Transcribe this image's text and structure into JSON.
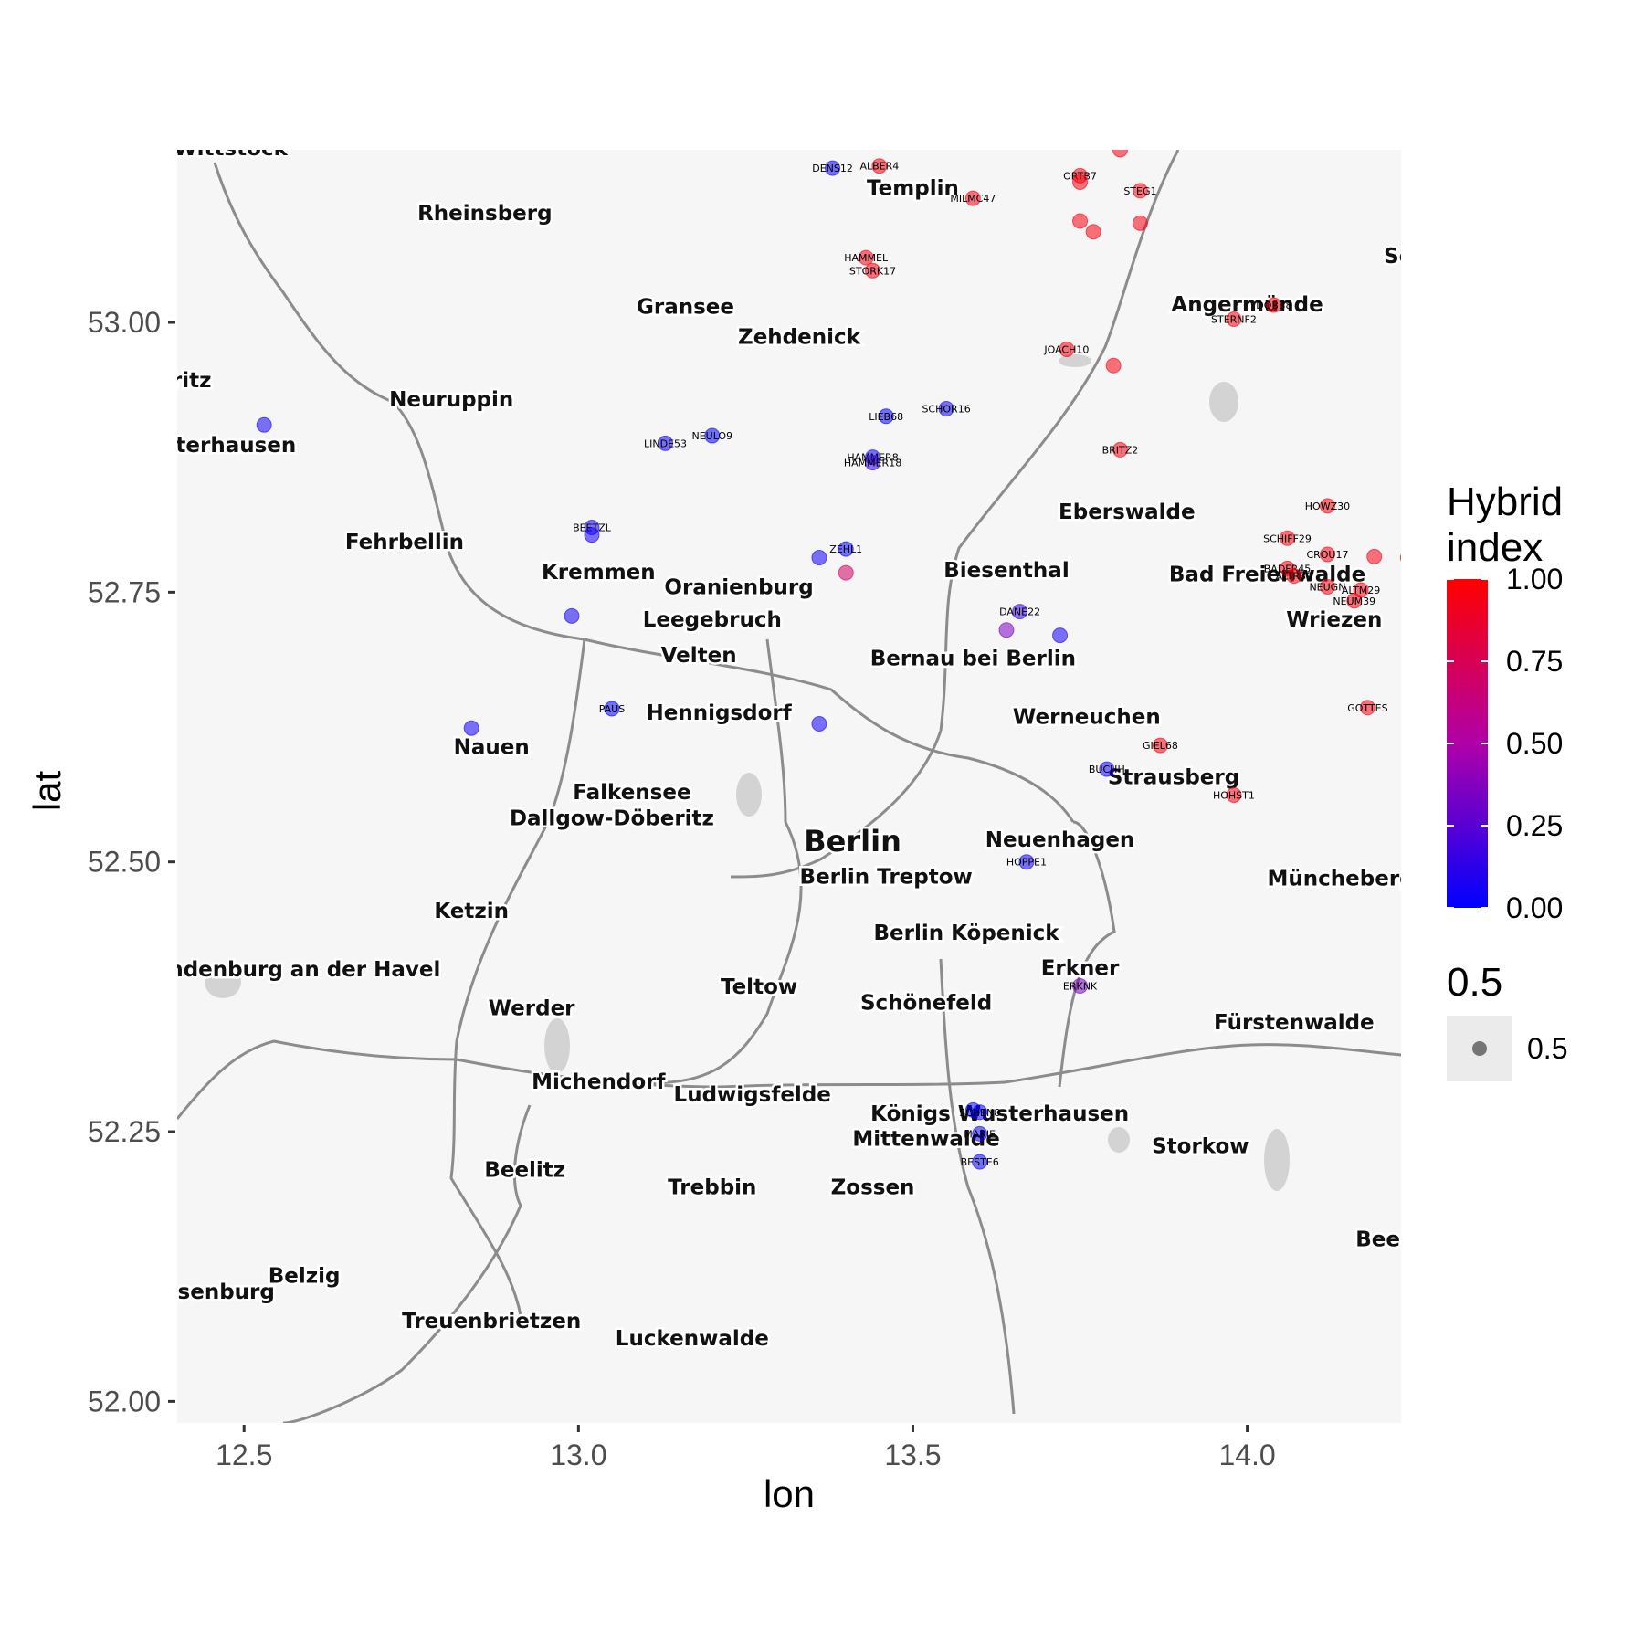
{
  "chart_data": {
    "type": "scatter",
    "basemap": "grayscale road map",
    "xlabel": "lon",
    "ylabel": "lat",
    "xlim": [
      12.4,
      14.23
    ],
    "ylim": [
      51.98,
      53.16
    ],
    "x_ticks": [
      12.5,
      13.0,
      13.5,
      14.0
    ],
    "x_tick_labels": [
      "12.5",
      "13.0",
      "13.5",
      "14.0"
    ],
    "y_ticks": [
      52.0,
      52.25,
      52.5,
      52.75,
      53.0
    ],
    "y_tick_labels": [
      "52.00",
      "52.25",
      "52.50",
      "52.75",
      "53.00"
    ],
    "grid": false,
    "color_scale": {
      "title": [
        "Hybrid",
        "index"
      ],
      "low_color": "#0000FF",
      "high_color": "#FF0000",
      "mid_color": "#B000A8",
      "ticks": [
        0.0,
        0.25,
        0.5,
        0.75,
        1.0
      ],
      "tick_labels": [
        "0.00",
        "0.25",
        "0.50",
        "0.75",
        "1.00"
      ]
    },
    "size_legend": {
      "title": "0.5",
      "label": "0.5"
    },
    "place_names": [
      {
        "name": "Wittstock",
        "lon": 12.48,
        "lat": 53.155
      },
      {
        "name": "Rheinsberg",
        "lon": 12.86,
        "lat": 53.095
      },
      {
        "name": "Templin",
        "lon": 13.5,
        "lat": 53.118
      },
      {
        "name": "Gransee",
        "lon": 13.16,
        "lat": 53.008
      },
      {
        "name": "Zehdenick",
        "lon": 13.33,
        "lat": 52.98
      },
      {
        "name": "Angermünde",
        "lon": 14.0,
        "lat": 53.01
      },
      {
        "name": "Neuruppin",
        "lon": 12.81,
        "lat": 52.922
      },
      {
        "name": "Eberswalde",
        "lon": 13.82,
        "lat": 52.818
      },
      {
        "name": "Fehrbellin",
        "lon": 12.74,
        "lat": 52.79
      },
      {
        "name": "Bad Freienwalde",
        "lon": 14.03,
        "lat": 52.76
      },
      {
        "name": "Kremmen",
        "lon": 13.03,
        "lat": 52.762
      },
      {
        "name": "Oranienburg",
        "lon": 13.24,
        "lat": 52.748
      },
      {
        "name": "Biesenthal",
        "lon": 13.64,
        "lat": 52.764
      },
      {
        "name": "Leegebruch",
        "lon": 13.2,
        "lat": 52.718
      },
      {
        "name": "Wriezen",
        "lon": 14.13,
        "lat": 52.718
      },
      {
        "name": "Velten",
        "lon": 13.18,
        "lat": 52.685
      },
      {
        "name": "Bernau bei Berlin",
        "lon": 13.59,
        "lat": 52.682
      },
      {
        "name": "Hennigsdorf",
        "lon": 13.21,
        "lat": 52.632
      },
      {
        "name": "Werneuchen",
        "lon": 13.76,
        "lat": 52.628
      },
      {
        "name": "Nauen",
        "lon": 12.87,
        "lat": 52.6
      },
      {
        "name": "Strausberg",
        "lon": 13.89,
        "lat": 52.572
      },
      {
        "name": "Falkensee",
        "lon": 13.08,
        "lat": 52.558
      },
      {
        "name": "Dallgow-Döberitz",
        "lon": 13.05,
        "lat": 52.534
      },
      {
        "name": "Berlin",
        "lon": 13.41,
        "lat": 52.51,
        "major": true
      },
      {
        "name": "Neuenhagen",
        "lon": 13.72,
        "lat": 52.514
      },
      {
        "name": "Berlin Treptow",
        "lon": 13.46,
        "lat": 52.48
      },
      {
        "name": "Müncheberg",
        "lon": 14.14,
        "lat": 52.478
      },
      {
        "name": "Ketzin",
        "lon": 12.84,
        "lat": 52.448
      },
      {
        "name": "Berlin Köpenick",
        "lon": 13.58,
        "lat": 52.428
      },
      {
        "name": "Brandenburg an der Havel",
        "lon": 12.56,
        "lat": 52.394
      },
      {
        "name": "Erkner",
        "lon": 13.75,
        "lat": 52.395
      },
      {
        "name": "Teltow",
        "lon": 13.27,
        "lat": 52.378
      },
      {
        "name": "Werder",
        "lon": 12.93,
        "lat": 52.358
      },
      {
        "name": "Schönefeld",
        "lon": 13.52,
        "lat": 52.363
      },
      {
        "name": "Fürstenwalde",
        "lon": 14.07,
        "lat": 52.345
      },
      {
        "name": "Michendorf",
        "lon": 13.03,
        "lat": 52.29
      },
      {
        "name": "Ludwigsfelde",
        "lon": 13.26,
        "lat": 52.278
      },
      {
        "name": "Königs Wusterhausen",
        "lon": 13.63,
        "lat": 52.26
      },
      {
        "name": "Mittenwalde",
        "lon": 13.52,
        "lat": 52.237
      },
      {
        "name": "Storkow",
        "lon": 13.93,
        "lat": 52.23
      },
      {
        "name": "Beelitz",
        "lon": 12.92,
        "lat": 52.208
      },
      {
        "name": "Trebbin",
        "lon": 13.2,
        "lat": 52.192
      },
      {
        "name": "Zossen",
        "lon": 13.44,
        "lat": 52.192
      },
      {
        "name": "Beeskow",
        "lon": 14.24,
        "lat": 52.144
      },
      {
        "name": "Belzig",
        "lon": 12.59,
        "lat": 52.11
      },
      {
        "name": "Wiesenburg",
        "lon": 12.44,
        "lat": 52.095
      },
      {
        "name": "Treuenbrietzen",
        "lon": 12.87,
        "lat": 52.068
      },
      {
        "name": "Luckenwalde",
        "lon": 13.17,
        "lat": 52.052
      },
      {
        "name": "Schwedt",
        "lon": 14.28,
        "lat": 53.055
      },
      {
        "name": "Wusterhausen",
        "lon": 12.45,
        "lat": 52.88
      },
      {
        "name": "Kyritz",
        "lon": 12.4,
        "lat": 52.94
      }
    ],
    "points": [
      {
        "label": "",
        "lon": 13.81,
        "lat": 53.16,
        "hybrid": 0.95
      },
      {
        "label": "DENS12",
        "lon": 13.38,
        "lat": 53.143,
        "hybrid": 0.02
      },
      {
        "label": "ALBER4",
        "lon": 13.45,
        "lat": 53.145,
        "hybrid": 0.95
      },
      {
        "label": "ORTB7",
        "lon": 13.75,
        "lat": 53.136,
        "hybrid": 0.95
      },
      {
        "label": "",
        "lon": 13.75,
        "lat": 53.13,
        "hybrid": 0.95
      },
      {
        "label": "STEG1",
        "lon": 13.84,
        "lat": 53.122,
        "hybrid": 0.95
      },
      {
        "label": "MILMC47",
        "lon": 13.59,
        "lat": 53.115,
        "hybrid": 0.95
      },
      {
        "label": "",
        "lon": 13.75,
        "lat": 53.094,
        "hybrid": 0.95
      },
      {
        "label": "",
        "lon": 13.77,
        "lat": 53.084,
        "hybrid": 0.95
      },
      {
        "label": "",
        "lon": 13.84,
        "lat": 53.092,
        "hybrid": 0.95
      },
      {
        "label": "HAMMEL",
        "lon": 13.43,
        "lat": 53.06,
        "hybrid": 0.95
      },
      {
        "label": "STORK17",
        "lon": 13.44,
        "lat": 53.048,
        "hybrid": 0.95
      },
      {
        "label": "DOBB8",
        "lon": 14.04,
        "lat": 53.016,
        "hybrid": 0.95
      },
      {
        "label": "STERNF2",
        "lon": 13.98,
        "lat": 53.003,
        "hybrid": 0.95
      },
      {
        "label": "JOACH10",
        "lon": 13.73,
        "lat": 52.975,
        "hybrid": 0.95
      },
      {
        "label": "",
        "lon": 13.8,
        "lat": 52.96,
        "hybrid": 0.95
      },
      {
        "label": "",
        "lon": 12.53,
        "lat": 52.905,
        "hybrid": 0.05
      },
      {
        "label": "SCHOR16",
        "lon": 13.55,
        "lat": 52.92,
        "hybrid": 0.05
      },
      {
        "label": "LIEB68",
        "lon": 13.46,
        "lat": 52.913,
        "hybrid": 0.0
      },
      {
        "label": "NEULO9",
        "lon": 13.2,
        "lat": 52.895,
        "hybrid": 0.0
      },
      {
        "label": "LINDE53",
        "lon": 13.13,
        "lat": 52.888,
        "hybrid": 0.05
      },
      {
        "label": "BRITZ2",
        "lon": 13.81,
        "lat": 52.882,
        "hybrid": 0.95
      },
      {
        "label": "HAMMER8",
        "lon": 13.44,
        "lat": 52.875,
        "hybrid": 0.02
      },
      {
        "label": "HAMMER18",
        "lon": 13.44,
        "lat": 52.87,
        "hybrid": 0.15
      },
      {
        "label": "HOWZ30",
        "lon": 14.12,
        "lat": 52.83,
        "hybrid": 0.95
      },
      {
        "label": "BEETZL",
        "lon": 13.02,
        "lat": 52.81,
        "hybrid": 0.05
      },
      {
        "label": "",
        "lon": 13.02,
        "lat": 52.803,
        "hybrid": 0.05
      },
      {
        "label": "SCHIFF29",
        "lon": 14.06,
        "lat": 52.8,
        "hybrid": 0.95
      },
      {
        "label": "ZEHL1",
        "lon": 13.4,
        "lat": 52.79,
        "hybrid": 0.0
      },
      {
        "label": "",
        "lon": 13.36,
        "lat": 52.782,
        "hybrid": 0.05
      },
      {
        "label": "CROU17",
        "lon": 14.12,
        "lat": 52.785,
        "hybrid": 0.95
      },
      {
        "label": "",
        "lon": 14.19,
        "lat": 52.783,
        "hybrid": 0.95
      },
      {
        "label": "",
        "lon": 14.24,
        "lat": 52.782,
        "hybrid": 0.95
      },
      {
        "label": "",
        "lon": 13.4,
        "lat": 52.768,
        "hybrid": 0.7
      },
      {
        "label": "BADFR45",
        "lon": 14.06,
        "lat": 52.772,
        "hybrid": 0.95
      },
      {
        "label": "ALTR39",
        "lon": 14.07,
        "lat": 52.765,
        "hybrid": 0.95
      },
      {
        "label": "NEUGN",
        "lon": 14.12,
        "lat": 52.755,
        "hybrid": 0.95
      },
      {
        "label": "ALTM29",
        "lon": 14.17,
        "lat": 52.752,
        "hybrid": 0.95
      },
      {
        "label": "NEUM39",
        "lon": 14.16,
        "lat": 52.742,
        "hybrid": 0.95
      },
      {
        "label": "DANE22",
        "lon": 13.66,
        "lat": 52.732,
        "hybrid": 0.15
      },
      {
        "label": "",
        "lon": 12.99,
        "lat": 52.728,
        "hybrid": 0.05
      },
      {
        "label": "",
        "lon": 13.64,
        "lat": 52.715,
        "hybrid": 0.35
      },
      {
        "label": "",
        "lon": 13.72,
        "lat": 52.71,
        "hybrid": 0.05
      },
      {
        "label": "PAUS",
        "lon": 13.05,
        "lat": 52.642,
        "hybrid": 0.0
      },
      {
        "label": "GOTTES",
        "lon": 14.18,
        "lat": 52.643,
        "hybrid": 0.95
      },
      {
        "label": "",
        "lon": 12.84,
        "lat": 52.624,
        "hybrid": 0.05
      },
      {
        "label": "",
        "lon": 13.36,
        "lat": 52.628,
        "hybrid": 0.05
      },
      {
        "label": "GIEL68",
        "lon": 13.87,
        "lat": 52.608,
        "hybrid": 0.95
      },
      {
        "label": "BUCHH",
        "lon": 13.79,
        "lat": 52.586,
        "hybrid": 0.05
      },
      {
        "label": "HOHST1",
        "lon": 13.98,
        "lat": 52.562,
        "hybrid": 0.95
      },
      {
        "label": "HOPPE1",
        "lon": 13.67,
        "lat": 52.5,
        "hybrid": 0.05
      },
      {
        "label": "ERKNK",
        "lon": 13.75,
        "lat": 52.385,
        "hybrid": 0.35
      },
      {
        "label": "",
        "lon": 13.59,
        "lat": 52.27,
        "hybrid": 0.0
      },
      {
        "label": "SCHEN8",
        "lon": 13.6,
        "lat": 52.268,
        "hybrid": 0.02
      },
      {
        "label": "MARIE",
        "lon": 13.6,
        "lat": 52.248,
        "hybrid": 0.02
      },
      {
        "label": "BESTE6",
        "lon": 13.6,
        "lat": 52.222,
        "hybrid": 0.02
      }
    ]
  }
}
